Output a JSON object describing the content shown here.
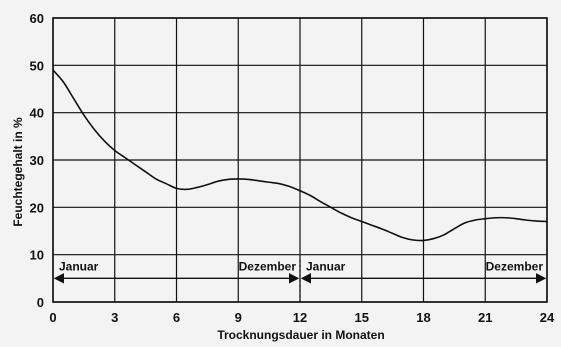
{
  "chart_data": {
    "type": "line",
    "xlabel": "Trocknungsdauer in Monaten",
    "ylabel": "Feuchtegehalt in %",
    "xlim": [
      0,
      24
    ],
    "ylim": [
      0,
      60
    ],
    "x_ticks": [
      0,
      3,
      6,
      9,
      12,
      15,
      18,
      21,
      24
    ],
    "y_ticks": [
      0,
      10,
      20,
      30,
      40,
      50,
      60
    ],
    "grid": true,
    "series": [
      {
        "x": [
          0,
          0.5,
          1,
          1.5,
          2,
          2.5,
          3,
          3.5,
          4,
          4.5,
          5,
          5.5,
          6,
          6.5,
          7,
          7.5,
          8,
          8.5,
          9,
          9.5,
          10,
          10.5,
          11,
          11.5,
          12,
          12.5,
          13,
          13.5,
          14,
          14.5,
          15,
          15.5,
          16,
          16.5,
          17,
          17.5,
          18,
          18.5,
          19,
          19.5,
          20,
          20.5,
          21,
          21.5,
          22,
          22.5,
          23,
          23.5,
          24
        ],
        "y": [
          49,
          46.5,
          43,
          39.5,
          36.5,
          34,
          32,
          30.5,
          29,
          27.5,
          26,
          25,
          24,
          23.8,
          24.2,
          24.8,
          25.5,
          25.9,
          26,
          25.9,
          25.6,
          25.3,
          25,
          24.4,
          23.5,
          22.5,
          21.2,
          20,
          18.8,
          17.8,
          17,
          16.2,
          15.4,
          14.5,
          13.6,
          13.1,
          13,
          13.4,
          14.2,
          15.5,
          16.7,
          17.3,
          17.6,
          17.8,
          17.8,
          17.6,
          17.3,
          17.1,
          17
        ]
      }
    ],
    "periods": [
      {
        "start_label": "Januar",
        "end_label": "Dezember",
        "from": 0,
        "to": 12
      },
      {
        "start_label": "Januar",
        "end_label": "Dezember",
        "from": 12,
        "to": 24
      }
    ],
    "period_arrow_y": 5
  }
}
